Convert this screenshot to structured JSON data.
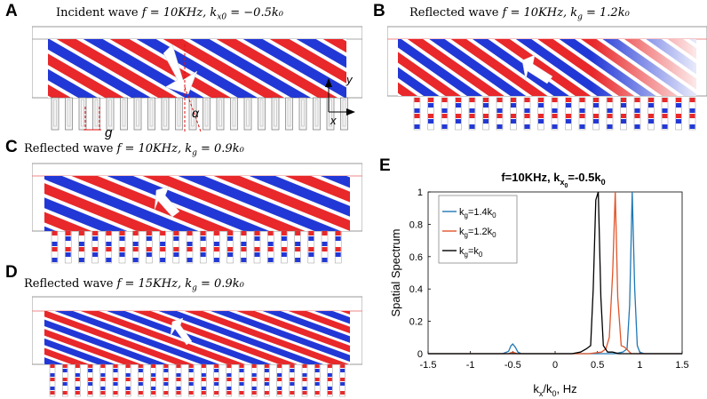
{
  "panels": {
    "A": {
      "label": "A",
      "title_prefix": "Incident wave ",
      "title_math": "f = 10KHz, k",
      "title_sub": "x0",
      "title_suffix": " = −0.5k₀",
      "annotations": {
        "g": "g",
        "alpha": "α",
        "x": "x",
        "y": "y"
      }
    },
    "B": {
      "label": "B",
      "title_prefix": "Reflected wave ",
      "title_math": "f = 10KHz, k",
      "title_sub": "g",
      "title_suffix": " = 1.2k₀"
    },
    "C": {
      "label": "C",
      "title_prefix": "Reflected wave ",
      "title_math": "f = 10KHz, k",
      "title_sub": "g",
      "title_suffix": " = 0.9k₀"
    },
    "D": {
      "label": "D",
      "title_prefix": "Reflected wave ",
      "title_math": "f = 15KHz, k",
      "title_sub": "g",
      "title_suffix": " = 0.9k₀"
    },
    "E": {
      "label": "E"
    }
  },
  "colors": {
    "wave_red": "#e8282a",
    "wave_blue": "#2238d6",
    "series_blue": "#1f77b4",
    "series_orange": "#e0552a",
    "series_black": "#000000"
  },
  "chart_data": {
    "type": "line",
    "title": "f=10KHz, kx0=-0.5k0",
    "title_parts": {
      "main": "f=10KHz, k",
      "sub": "x",
      "sub2": "0",
      "tail": "=-0.5k",
      "tail_sub": "0"
    },
    "xlabel": "kx/k0, Hz",
    "xlabel_parts": {
      "k": "k",
      "x": "x",
      "slash": "/k",
      "zero": "0",
      "tail": ", Hz"
    },
    "ylabel": "Spatial Spectrum",
    "xlim": [
      -1.5,
      1.5
    ],
    "ylim": [
      0,
      1
    ],
    "xticks": [
      "-1.5",
      "-1",
      "-0.5",
      "0",
      "0.5",
      "1",
      "1.5"
    ],
    "yticks": [
      "0",
      "0.2",
      "0.4",
      "0.6",
      "0.8",
      "1"
    ],
    "legend_position": "top-left",
    "series": [
      {
        "name": "kg=1.4k0",
        "legend": {
          "k": "k",
          "sub": "g",
          "tail": "=1.4k",
          "tail_sub": "0"
        },
        "color": "#1f77b4",
        "x": [
          -1.5,
          -0.62,
          -0.55,
          -0.52,
          -0.5,
          -0.47,
          -0.44,
          -0.4,
          0.5,
          0.7,
          0.8,
          0.85,
          0.88,
          0.91,
          0.94,
          0.97,
          1.0,
          1.05,
          1.5
        ],
        "y": [
          0,
          0,
          0.015,
          0.05,
          0.06,
          0.04,
          0.01,
          0,
          0,
          0,
          0.01,
          0.03,
          0.3,
          1.0,
          0.4,
          0.05,
          0.01,
          0,
          0
        ]
      },
      {
        "name": "kg=1.2k0",
        "legend": {
          "k": "k",
          "sub": "g",
          "tail": "=1.2k",
          "tail_sub": "0"
        },
        "color": "#e0552a",
        "x": [
          -1.5,
          -0.55,
          -0.5,
          -0.45,
          0.4,
          0.55,
          0.6,
          0.64,
          0.68,
          0.71,
          0.74,
          0.78,
          0.82,
          0.86,
          0.9,
          1.5
        ],
        "y": [
          0,
          0,
          0.01,
          0,
          0,
          0.01,
          0.03,
          0.1,
          0.5,
          1.0,
          0.35,
          0.05,
          0.04,
          0.02,
          0,
          0
        ]
      },
      {
        "name": "kg=k0",
        "legend": {
          "k": "k",
          "sub": "g",
          "tail": "=k",
          "tail_sub": "0"
        },
        "color": "#000000",
        "x": [
          -1.5,
          -0.5,
          0.2,
          0.3,
          0.37,
          0.42,
          0.45,
          0.48,
          0.51,
          0.54,
          0.57,
          0.62,
          0.68,
          0.75,
          1.5
        ],
        "y": [
          0,
          0,
          0,
          0.01,
          0.03,
          0.05,
          0.4,
          0.95,
          1.0,
          0.35,
          0.05,
          0.01,
          0.01,
          0,
          0
        ]
      }
    ]
  }
}
